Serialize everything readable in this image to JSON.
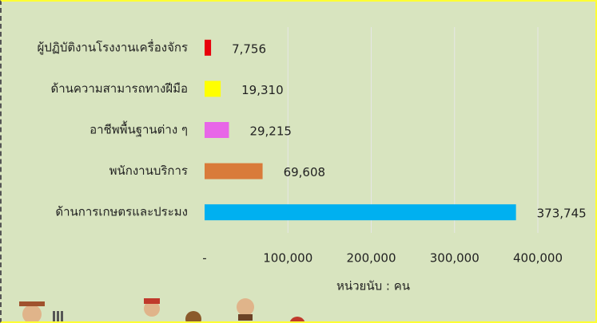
{
  "chart_data": {
    "type": "bar",
    "orientation": "horizontal",
    "categories": [
      "ผู้ปฏิบัติงานโรงงานเครื่องจักร",
      "ด้านความสามารถทางฝีมือ",
      "อาชีพพื้นฐานต่าง ๆ",
      "พนักงานบริการ",
      "ด้านการเกษตรและประมง"
    ],
    "values": [
      7756,
      19310,
      29215,
      69608,
      373745
    ],
    "value_labels": [
      "7,756",
      "19,310",
      "29,215",
      "69,608",
      "373,745"
    ],
    "colors": [
      "#e8000b",
      "#ffff00",
      "#e866e8",
      "#d97b3a",
      "#00b0f0"
    ],
    "xlim": [
      0,
      400000
    ],
    "xticks": [
      {
        "value": 0,
        "label": "-"
      },
      {
        "value": 100000,
        "label": "100,000"
      },
      {
        "value": 200000,
        "label": "200,000"
      },
      {
        "value": 300000,
        "label": "300,000"
      },
      {
        "value": 400000,
        "label": "400,000"
      }
    ],
    "xlabel": "หน่วยนับ : คน",
    "grid": true
  }
}
